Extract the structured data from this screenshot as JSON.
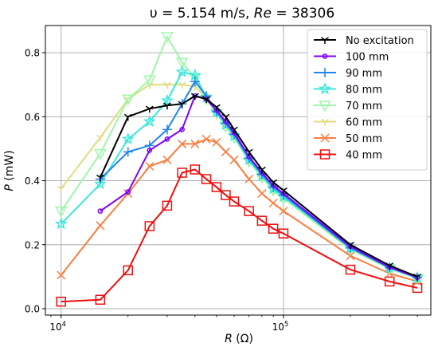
{
  "chart_data": {
    "type": "line",
    "title": "υ = 5.154 m/s, Re = 38306",
    "title_parts": {
      "a": "υ",
      "b": " = 5.154 m/s, ",
      "c": "Re",
      "d": " = 38306"
    },
    "xlabel": "R (Ω)",
    "xlabel_parts": {
      "var": "R",
      "unit": " (Ω)"
    },
    "ylabel": "P (mW)",
    "ylabel_parts": {
      "var": "P",
      "unit": " (mW)"
    },
    "x_scale": "log",
    "xlim": [
      8500,
      460000
    ],
    "ylim": [
      -0.02,
      0.885
    ],
    "x_ticks": [
      {
        "value": 10000,
        "label_base": "10",
        "label_exp": "4"
      },
      {
        "value": 100000,
        "label_base": "10",
        "label_exp": "5"
      }
    ],
    "y_ticks": [
      {
        "value": 0.0,
        "label": "0.0"
      },
      {
        "value": 0.2,
        "label": "0.2"
      },
      {
        "value": 0.4,
        "label": "0.4"
      },
      {
        "value": 0.6,
        "label": "0.6"
      },
      {
        "value": 0.8,
        "label": "0.8"
      }
    ],
    "grid": true,
    "legend_position": "top-right",
    "series": [
      {
        "name": "No excitation",
        "color": "#000000",
        "marker": "tri_down",
        "x": [
          15000,
          20000,
          25000,
          30000,
          35000,
          40000,
          45000,
          50000,
          55000,
          60000,
          70000,
          80000,
          90000,
          100000,
          200000,
          300000,
          400000
        ],
        "y": [
          0.41,
          0.6,
          0.625,
          0.635,
          0.64,
          0.665,
          0.655,
          0.63,
          0.6,
          0.56,
          0.49,
          0.435,
          0.395,
          0.37,
          0.2,
          0.135,
          0.1
        ]
      },
      {
        "name": "100 mm",
        "color": "#7b00ff",
        "marker": "circle",
        "x": [
          15000,
          20000,
          25000,
          30000,
          35000,
          40000,
          45000,
          50000,
          55000,
          60000,
          70000,
          80000,
          90000,
          100000,
          200000,
          300000,
          400000
        ],
        "y": [
          0.305,
          0.365,
          0.495,
          0.53,
          0.56,
          0.665,
          0.655,
          0.62,
          0.585,
          0.55,
          0.475,
          0.425,
          0.385,
          0.36,
          0.195,
          0.13,
          0.098
        ]
      },
      {
        "name": "90 mm",
        "color": "#1f86ee",
        "marker": "plus",
        "x": [
          15000,
          20000,
          25000,
          30000,
          35000,
          40000,
          45000,
          50000,
          55000,
          60000,
          70000,
          80000,
          90000,
          100000,
          200000,
          300000,
          400000
        ],
        "y": [
          0.405,
          0.49,
          0.51,
          0.56,
          0.64,
          0.71,
          0.665,
          0.615,
          0.58,
          0.545,
          0.47,
          0.42,
          0.38,
          0.355,
          0.19,
          0.128,
          0.097
        ]
      },
      {
        "name": "80 mm",
        "color": "#3ae8dc",
        "marker": "star",
        "x": [
          10000,
          15000,
          20000,
          25000,
          30000,
          35000,
          40000,
          45000,
          50000,
          55000,
          60000,
          70000,
          80000,
          90000,
          100000,
          200000,
          300000,
          400000
        ],
        "y": [
          0.265,
          0.39,
          0.53,
          0.585,
          0.65,
          0.74,
          0.73,
          0.66,
          0.615,
          0.575,
          0.54,
          0.465,
          0.415,
          0.375,
          0.35,
          0.19,
          0.128,
          0.097
        ]
      },
      {
        "name": "70 mm",
        "color": "#9ff7a8",
        "marker": "tri_down_big",
        "x": [
          10000,
          15000,
          20000,
          25000,
          30000,
          35000,
          40000,
          45000,
          50000,
          55000,
          60000,
          70000,
          80000,
          90000,
          100000,
          200000,
          300000,
          400000
        ],
        "y": [
          0.305,
          0.485,
          0.655,
          0.715,
          0.85,
          0.77,
          0.72,
          0.655,
          0.61,
          0.57,
          0.535,
          0.46,
          0.41,
          0.37,
          0.345,
          0.185,
          0.125,
          0.095
        ]
      },
      {
        "name": "60 mm",
        "color": "#e1dc7f",
        "marker": "tri_down",
        "x": [
          10000,
          15000,
          20000,
          25000,
          30000,
          35000,
          40000,
          45000,
          50000,
          55000,
          60000,
          70000,
          80000,
          90000,
          100000,
          200000,
          300000,
          400000
        ],
        "y": [
          0.375,
          0.535,
          0.655,
          0.7,
          0.7,
          0.7,
          0.695,
          0.66,
          0.615,
          0.575,
          0.54,
          0.46,
          0.41,
          0.37,
          0.345,
          0.185,
          0.125,
          0.095
        ]
      },
      {
        "name": "50 mm",
        "color": "#fb7d3f",
        "marker": "x",
        "x": [
          10000,
          15000,
          20000,
          25000,
          30000,
          35000,
          40000,
          45000,
          50000,
          55000,
          60000,
          70000,
          80000,
          90000,
          100000,
          200000,
          300000,
          400000
        ],
        "y": [
          0.105,
          0.26,
          0.36,
          0.445,
          0.465,
          0.515,
          0.515,
          0.53,
          0.52,
          0.49,
          0.465,
          0.405,
          0.36,
          0.33,
          0.305,
          0.165,
          0.11,
          0.085
        ]
      },
      {
        "name": "40 mm",
        "color": "#f00e0e",
        "marker": "square",
        "x": [
          10000,
          15000,
          20000,
          25000,
          30000,
          35000,
          40000,
          45000,
          50000,
          55000,
          60000,
          70000,
          80000,
          90000,
          100000,
          200000,
          300000,
          400000
        ],
        "y": [
          0.022,
          0.028,
          0.12,
          0.258,
          0.322,
          0.425,
          0.435,
          0.405,
          0.38,
          0.355,
          0.335,
          0.305,
          0.275,
          0.25,
          0.235,
          0.122,
          0.085,
          0.065
        ]
      }
    ]
  }
}
